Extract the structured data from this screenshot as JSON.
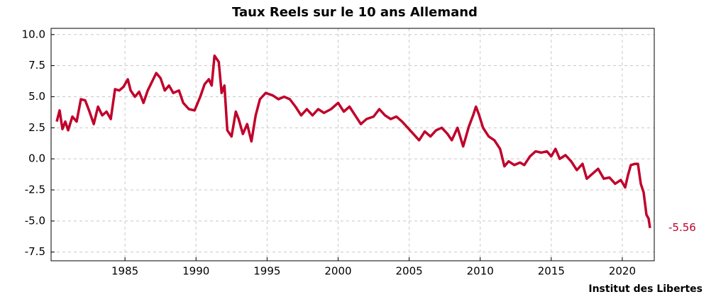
{
  "chart_data": {
    "type": "line",
    "title": "Taux Reels sur le 10 ans Allemand",
    "source": "Institut des Libertes",
    "x": [
      1980.2,
      1980.4,
      1980.6,
      1980.8,
      1981.0,
      1981.3,
      1981.6,
      1981.9,
      1982.2,
      1982.5,
      1982.8,
      1983.1,
      1983.4,
      1983.7,
      1984.0,
      1984.3,
      1984.6,
      1984.9,
      1985.2,
      1985.4,
      1985.7,
      1986.0,
      1986.3,
      1986.6,
      1986.9,
      1987.2,
      1987.5,
      1987.8,
      1988.1,
      1988.4,
      1988.8,
      1989.1,
      1989.5,
      1989.9,
      1990.3,
      1990.6,
      1990.9,
      1991.1,
      1991.3,
      1991.6,
      1991.8,
      1992.0,
      1992.2,
      1992.5,
      1992.8,
      1993.0,
      1993.3,
      1993.6,
      1993.9,
      1994.2,
      1994.5,
      1994.9,
      1995.4,
      1995.8,
      1996.2,
      1996.6,
      1997.0,
      1997.4,
      1997.8,
      1998.2,
      1998.6,
      1999.0,
      1999.5,
      2000.0,
      2000.4,
      2000.8,
      2001.2,
      2001.6,
      2002.0,
      2002.5,
      2002.9,
      2003.3,
      2003.7,
      2004.1,
      2004.5,
      2004.9,
      2005.3,
      2005.7,
      2006.1,
      2006.5,
      2006.9,
      2007.3,
      2007.7,
      2008.0,
      2008.4,
      2008.8,
      2009.2,
      2009.5,
      2009.7,
      2009.9,
      2010.2,
      2010.6,
      2011.0,
      2011.4,
      2011.7,
      2012.0,
      2012.4,
      2012.8,
      2013.1,
      2013.5,
      2013.9,
      2014.3,
      2014.7,
      2015.0,
      2015.3,
      2015.6,
      2016.0,
      2016.4,
      2016.8,
      2017.2,
      2017.5,
      2017.9,
      2018.3,
      2018.7,
      2019.1,
      2019.5,
      2019.9,
      2020.2,
      2020.4,
      2020.6,
      2020.9,
      2021.1,
      2021.3,
      2021.5,
      2021.7,
      2021.85,
      2021.95
    ],
    "series": [
      {
        "color": "#c0002a",
        "values": [
          3.0,
          3.9,
          2.4,
          3.0,
          2.3,
          3.4,
          3.0,
          4.8,
          4.7,
          3.8,
          2.8,
          4.2,
          3.5,
          3.8,
          3.2,
          5.6,
          5.5,
          5.8,
          6.4,
          5.5,
          5.0,
          5.4,
          4.5,
          5.5,
          6.2,
          6.9,
          6.5,
          5.5,
          5.9,
          5.3,
          5.5,
          4.5,
          4.0,
          3.9,
          5.0,
          6.0,
          6.4,
          5.9,
          8.3,
          7.8,
          5.3,
          5.9,
          2.3,
          1.8,
          3.8,
          3.2,
          2.0,
          2.8,
          1.4,
          3.5,
          4.8,
          5.3,
          5.1,
          4.8,
          5.0,
          4.8,
          4.2,
          3.5,
          4.0,
          3.5,
          4.0,
          3.7,
          4.0,
          4.5,
          3.8,
          4.2,
          3.5,
          2.8,
          3.2,
          3.4,
          4.0,
          3.5,
          3.2,
          3.4,
          3.0,
          2.5,
          2.0,
          1.5,
          2.2,
          1.8,
          2.3,
          2.5,
          2.0,
          1.5,
          2.5,
          1.0,
          2.6,
          3.5,
          4.2,
          3.6,
          2.5,
          1.8,
          1.5,
          0.8,
          -0.6,
          -0.2,
          -0.5,
          -0.3,
          -0.5,
          0.2,
          0.6,
          0.5,
          0.6,
          0.2,
          0.8,
          0.0,
          0.3,
          -0.2,
          -0.9,
          -0.4,
          -1.6,
          -1.2,
          -0.8,
          -1.6,
          -1.5,
          -2.0,
          -1.7,
          -2.3,
          -1.3,
          -0.5,
          -0.4,
          -0.4,
          -2.0,
          -2.7,
          -4.5,
          -4.8,
          -5.56
        ]
      }
    ],
    "xlim": [
      1979.8,
      2022.25
    ],
    "ylim": [
      -8.2,
      10.5
    ],
    "xticks": [
      1985,
      1990,
      1995,
      2000,
      2005,
      2010,
      2015,
      2020
    ],
    "yticks": [
      {
        "value": 10,
        "label": "10.0"
      },
      7.5,
      {
        "value": 5,
        "label": "5.0"
      },
      2.5,
      {
        "value": 0,
        "label": "0.0"
      },
      -2.5,
      {
        "value": -5,
        "label": "-5.0"
      },
      -7.5
    ],
    "grid": true
  }
}
